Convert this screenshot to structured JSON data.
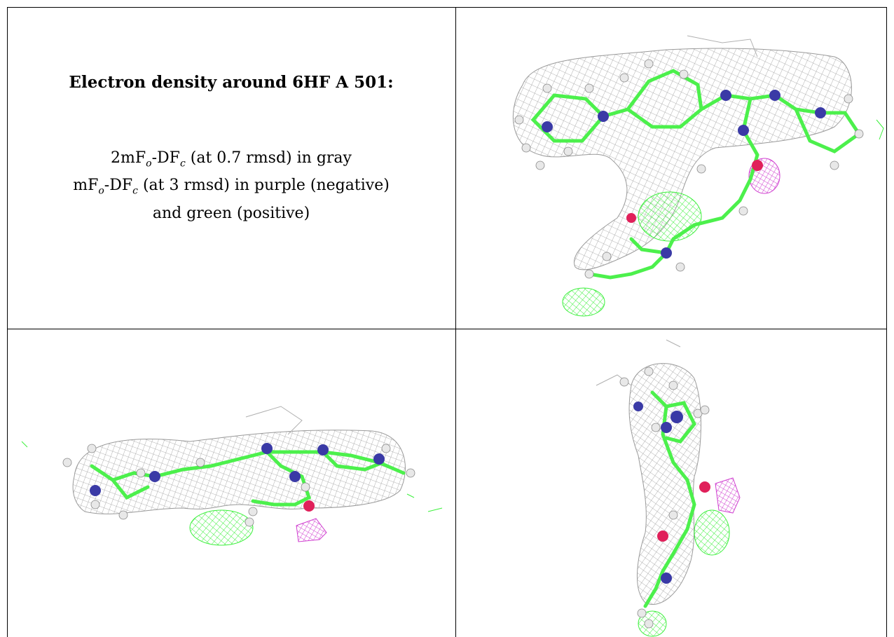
{
  "caption": {
    "title": "Electron density around 6HF A 501:",
    "line1_prefix": "2mF",
    "line1_sub1": "o",
    "line1_mid": "-DF",
    "line1_sub2": "c",
    "line1_suffix": " (at 0.7 rmsd) in gray",
    "line2_prefix": "mF",
    "line2_sub1": "o",
    "line2_mid": "-DF",
    "line2_sub2": "c",
    "line2_suffix": " (at 3 rmsd) in purple (negative)",
    "line3": "and green (positive)"
  },
  "colors": {
    "mesh_gray": "#9a9a9a",
    "carbon_green": "#4cf04c",
    "nitrogen_blue": "#3a3aa6",
    "oxygen_red": "#e0205a",
    "hydrogen_white": "#e8e8e8",
    "negative_purple": "#d040d0",
    "positive_green": "#3cf03c"
  },
  "panels": [
    {
      "id": "top-right",
      "view": "front"
    },
    {
      "id": "bottom-left",
      "view": "side"
    },
    {
      "id": "bottom-right",
      "view": "end"
    }
  ]
}
